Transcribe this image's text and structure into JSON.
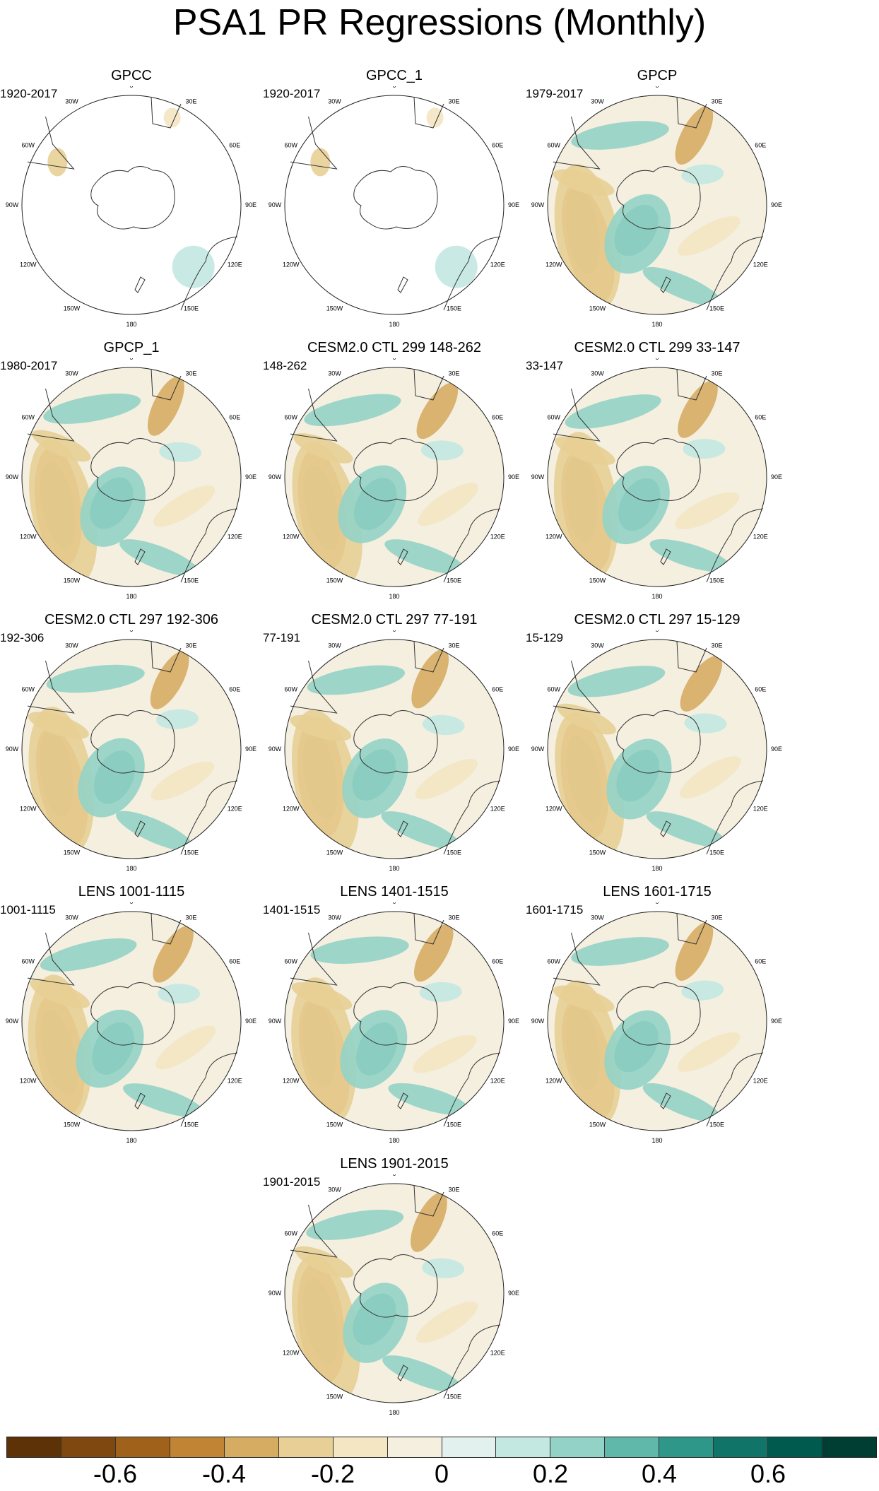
{
  "title": "PSA1 PR Regressions (Monthly)",
  "lon_labels": [
    "0",
    "30E",
    "60E",
    "90E",
    "120E",
    "150E",
    "180",
    "150W",
    "120W",
    "90W",
    "60W",
    "30W"
  ],
  "panels": [
    {
      "title": "GPCC",
      "period": "1920-2017",
      "coverage": "land"
    },
    {
      "title": "GPCC_1",
      "period": "1920-2017",
      "coverage": "land"
    },
    {
      "title": "GPCP",
      "period": "1979-2017",
      "coverage": "full"
    },
    {
      "title": "GPCP_1",
      "period": "1980-2017",
      "coverage": "full"
    },
    {
      "title": "CESM2.0 CTL 299 148-262",
      "period": "148-262",
      "coverage": "full"
    },
    {
      "title": "CESM2.0 CTL 299 33-147",
      "period": "33-147",
      "coverage": "full"
    },
    {
      "title": "CESM2.0 CTL 297 192-306",
      "period": "192-306",
      "coverage": "full"
    },
    {
      "title": "CESM2.0 CTL 297 77-191",
      "period": "77-191",
      "coverage": "full"
    },
    {
      "title": "CESM2.0 CTL 297 15-129",
      "period": "15-129",
      "coverage": "full"
    },
    {
      "title": "LENS 1001-1115",
      "period": "1001-1115",
      "coverage": "full"
    },
    {
      "title": "LENS 1401-1515",
      "period": "1401-1515",
      "coverage": "full"
    },
    {
      "title": "LENS 1601-1715",
      "period": "1601-1715",
      "coverage": "full"
    },
    {
      "title": "LENS 1901-2015",
      "period": "1901-2015",
      "coverage": "full"
    }
  ],
  "colorbar": {
    "colors": [
      "#5c3206",
      "#7f4810",
      "#a0621b",
      "#c08434",
      "#d6ac63",
      "#e8cf95",
      "#f4e6c3",
      "#f5efe0",
      "#e2f0ee",
      "#c3e8e1",
      "#93d3c7",
      "#5fb8aa",
      "#2f968a",
      "#107568",
      "#005a4d",
      "#003d33"
    ],
    "tick_labels": [
      "-0.6",
      "-0.4",
      "-0.2",
      "0",
      "0.2",
      "0.4",
      "0.6"
    ]
  }
}
